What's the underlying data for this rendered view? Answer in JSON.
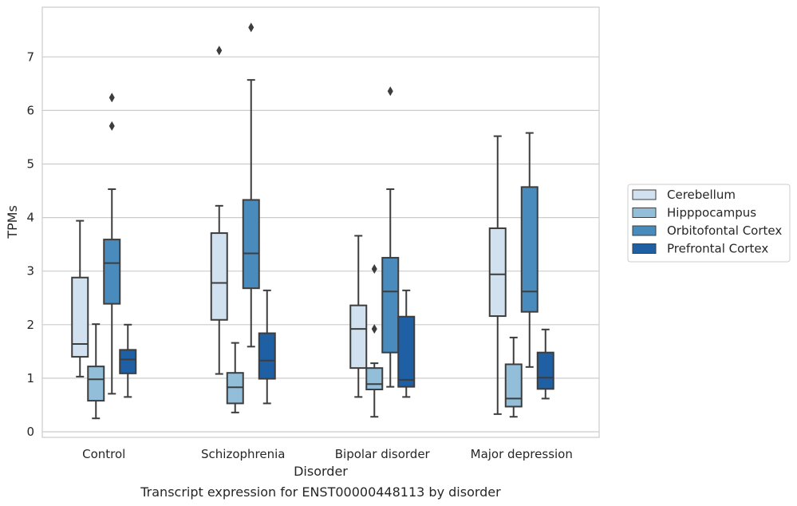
{
  "chart_data": {
    "type": "box",
    "title": "",
    "xlabel": "Disorder",
    "ylabel": "TPMs",
    "caption": "Transcript expression for ENST00000448113 by disorder",
    "categories": [
      "Control",
      "Schizophrenia",
      "Bipolar disorder",
      "Major depression"
    ],
    "hues": [
      "Cerebellum",
      "Hipppocampus",
      "Orbitofontal Cortex",
      "Prefrontal Cortex"
    ],
    "colors": [
      "#d1e1ef",
      "#93bed9",
      "#4a8bbd",
      "#1f5fa3"
    ],
    "ylim": [
      -0.1,
      7.9
    ],
    "yticks": [
      0,
      1,
      2,
      3,
      4,
      5,
      6,
      7
    ],
    "grid": true,
    "legend_position": "right, outside",
    "boxes": [
      {
        "category": "Control",
        "hue": "Cerebellum",
        "whislo": 1.03,
        "q1": 1.4,
        "med": 1.64,
        "q3": 2.88,
        "whishi": 3.94,
        "fliers": []
      },
      {
        "category": "Control",
        "hue": "Hipppocampus",
        "whislo": 0.25,
        "q1": 0.58,
        "med": 0.98,
        "q3": 1.22,
        "whishi": 2.01,
        "fliers": []
      },
      {
        "category": "Control",
        "hue": "Orbitofontal Cortex",
        "whislo": 0.71,
        "q1": 2.39,
        "med": 3.15,
        "q3": 3.59,
        "whishi": 4.53,
        "fliers": [
          5.71,
          6.24
        ]
      },
      {
        "category": "Control",
        "hue": "Prefrontal Cortex",
        "whislo": 0.65,
        "q1": 1.09,
        "med": 1.35,
        "q3": 1.53,
        "whishi": 2.0,
        "fliers": []
      },
      {
        "category": "Schizophrenia",
        "hue": "Cerebellum",
        "whislo": 1.08,
        "q1": 2.09,
        "med": 2.78,
        "q3": 3.71,
        "whishi": 4.22,
        "fliers": [
          7.12
        ]
      },
      {
        "category": "Schizophrenia",
        "hue": "Hipppocampus",
        "whislo": 0.36,
        "q1": 0.53,
        "med": 0.83,
        "q3": 1.1,
        "whishi": 1.66,
        "fliers": []
      },
      {
        "category": "Schizophrenia",
        "hue": "Orbitofontal Cortex",
        "whislo": 1.59,
        "q1": 2.68,
        "med": 3.33,
        "q3": 4.33,
        "whishi": 6.57,
        "fliers": [
          7.55
        ]
      },
      {
        "category": "Schizophrenia",
        "hue": "Prefrontal Cortex",
        "whislo": 0.53,
        "q1": 0.99,
        "med": 1.33,
        "q3": 1.84,
        "whishi": 2.64,
        "fliers": []
      },
      {
        "category": "Bipolar disorder",
        "hue": "Cerebellum",
        "whislo": 0.65,
        "q1": 1.19,
        "med": 1.92,
        "q3": 2.36,
        "whishi": 3.66,
        "fliers": []
      },
      {
        "category": "Bipolar disorder",
        "hue": "Hipppocampus",
        "whislo": 0.28,
        "q1": 0.79,
        "med": 0.89,
        "q3": 1.19,
        "whishi": 1.28,
        "fliers": [
          1.92,
          3.04
        ]
      },
      {
        "category": "Bipolar disorder",
        "hue": "Orbitofontal Cortex",
        "whislo": 0.84,
        "q1": 1.48,
        "med": 2.62,
        "q3": 3.25,
        "whishi": 4.53,
        "fliers": [
          6.36
        ]
      },
      {
        "category": "Bipolar disorder",
        "hue": "Prefrontal Cortex",
        "whislo": 0.65,
        "q1": 0.84,
        "med": 0.97,
        "q3": 2.15,
        "whishi": 2.64,
        "fliers": []
      },
      {
        "category": "Major depression",
        "hue": "Cerebellum",
        "whislo": 0.33,
        "q1": 2.16,
        "med": 2.94,
        "q3": 3.8,
        "whishi": 5.52,
        "fliers": []
      },
      {
        "category": "Major depression",
        "hue": "Hipppocampus",
        "whislo": 0.28,
        "q1": 0.47,
        "med": 0.62,
        "q3": 1.26,
        "whishi": 1.76,
        "fliers": []
      },
      {
        "category": "Major depression",
        "hue": "Orbitofontal Cortex",
        "whislo": 1.21,
        "q1": 2.24,
        "med": 2.62,
        "q3": 4.57,
        "whishi": 5.58,
        "fliers": []
      },
      {
        "category": "Major depression",
        "hue": "Prefrontal Cortex",
        "whislo": 0.62,
        "q1": 0.8,
        "med": 1.01,
        "q3": 1.48,
        "whishi": 1.91,
        "fliers": []
      }
    ]
  }
}
